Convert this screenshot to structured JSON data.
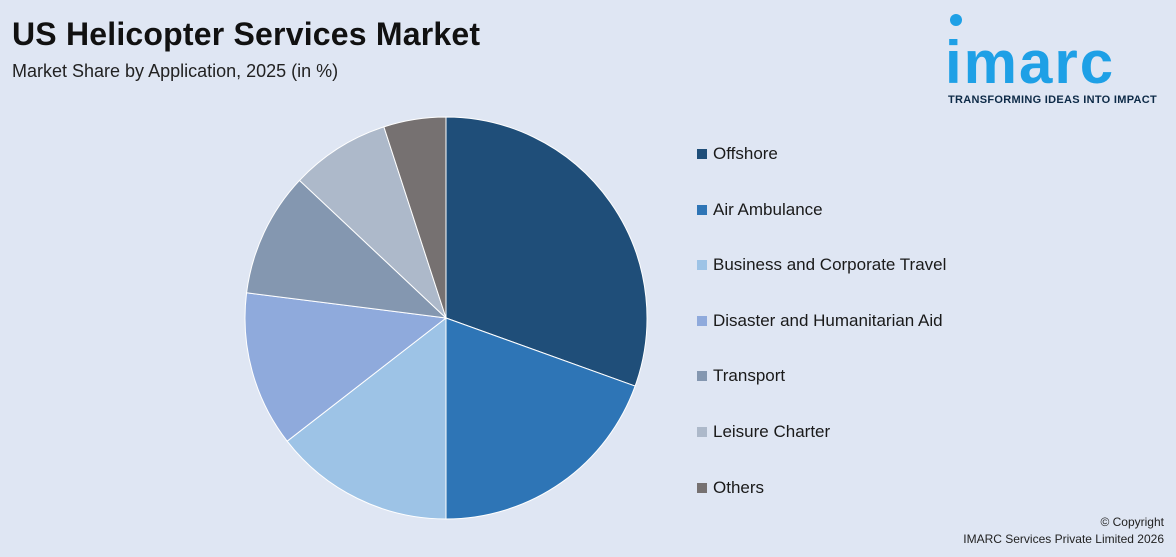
{
  "header": {
    "title": "US Helicopter Services Market",
    "subtitle": "Market Share by Application, 2025 (in %)"
  },
  "logo": {
    "wordmark": "imarc",
    "tagline": "TRANSFORMING IDEAS INTO IMPACT",
    "color": "#1ea0e6"
  },
  "chart_data": {
    "type": "pie",
    "categories": [
      "Offshore",
      "Air Ambulance",
      "Business and Corporate Travel",
      "Disaster and Humanitarian Aid",
      "Transport",
      "Leisure Charter",
      "Others"
    ],
    "values": [
      30.5,
      19.5,
      14.5,
      12.5,
      10.0,
      8.0,
      5.0
    ],
    "colors": [
      "#1f4e79",
      "#2e75b6",
      "#9dc3e6",
      "#8faadc",
      "#8497b0",
      "#adb9ca",
      "#767171"
    ],
    "legend_position": "right",
    "start_angle_deg": 0,
    "direction": "clockwise"
  },
  "footer": {
    "copyright_line1": "© Copyright",
    "copyright_line2": "IMARC Services Private Limited 2026"
  }
}
